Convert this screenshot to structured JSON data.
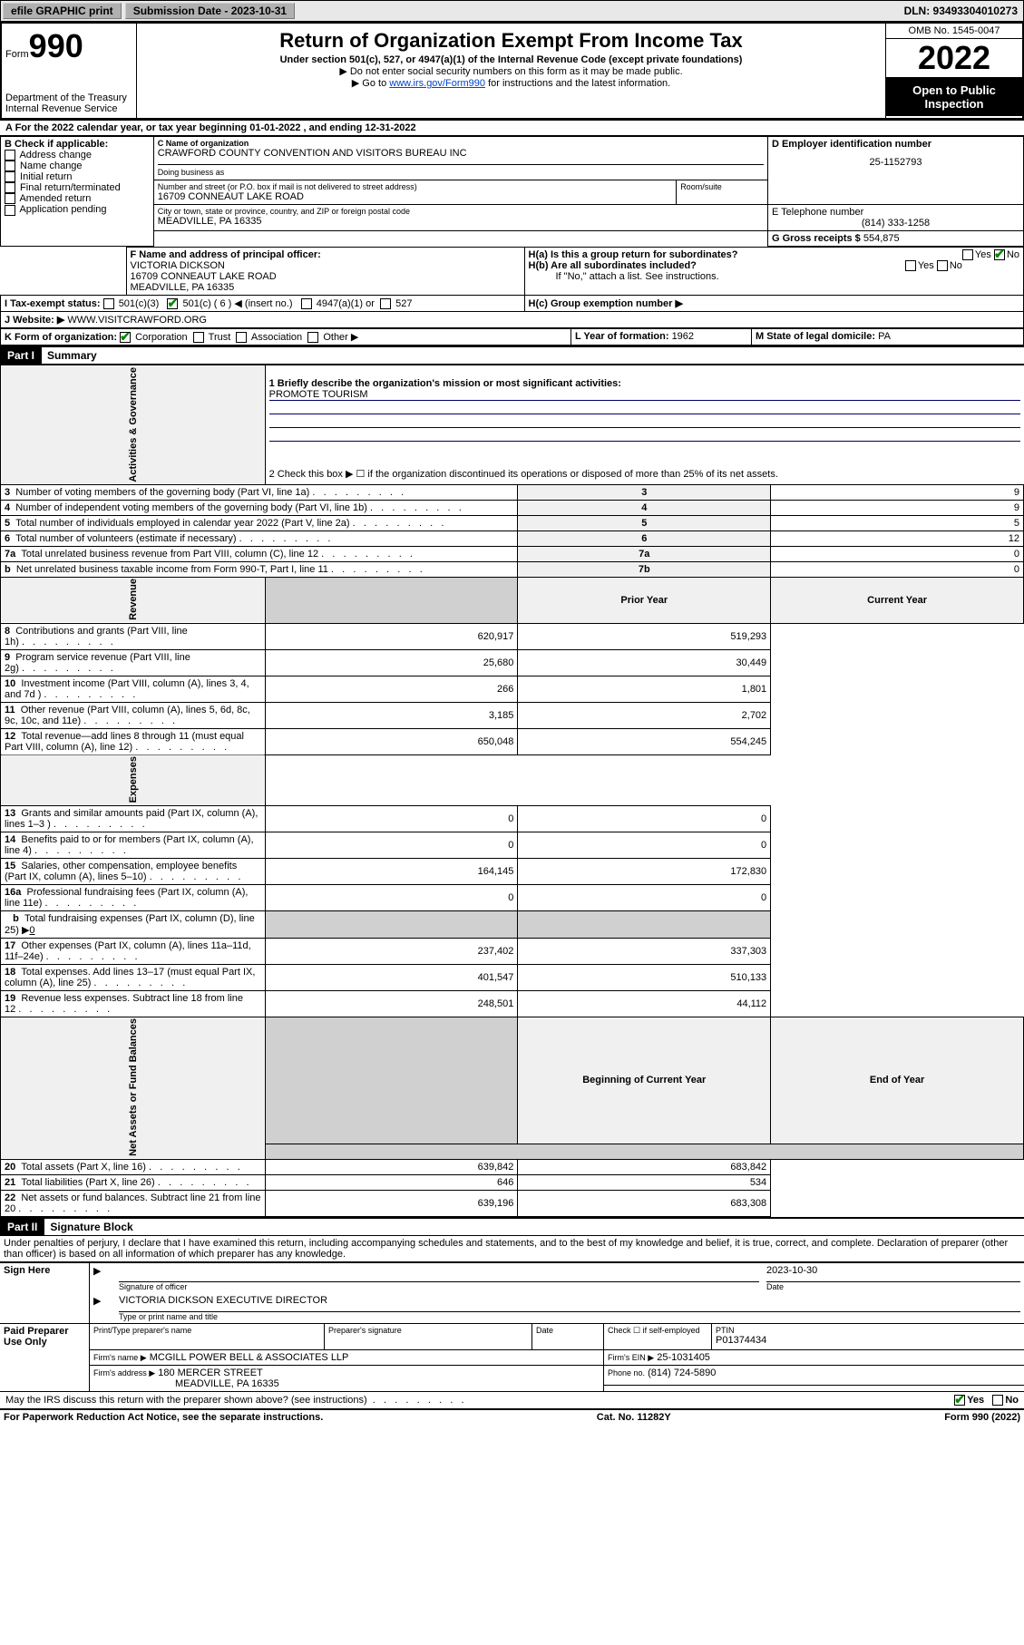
{
  "topbar": {
    "efile": "efile GRAPHIC print",
    "submission_label": "Submission Date - 2023-10-31",
    "dln": "DLN: 93493304010273"
  },
  "header": {
    "form_prefix": "Form",
    "form_no": "990",
    "dept": "Department of the Treasury",
    "irs": "Internal Revenue Service",
    "title": "Return of Organization Exempt From Income Tax",
    "sub1": "Under section 501(c), 527, or 4947(a)(1) of the Internal Revenue Code (except private foundations)",
    "sub2": "▶ Do not enter social security numbers on this form as it may be made public.",
    "sub3_pre": "▶ Go to ",
    "sub3_link": "www.irs.gov/Form990",
    "sub3_post": " for instructions and the latest information.",
    "omb": "OMB No. 1545-0047",
    "year": "2022",
    "inspect": "Open to Public Inspection"
  },
  "row_a": {
    "text_pre": "A For the 2022 calendar year, or tax year beginning ",
    "begin": "01-01-2022",
    "mid": "  , and ending ",
    "end": "12-31-2022"
  },
  "box_b": {
    "label": "B Check if applicable:",
    "items": [
      "Address change",
      "Name change",
      "Initial return",
      "Final return/terminated",
      "Amended return",
      "Application pending"
    ]
  },
  "box_c": {
    "label": "C Name of organization",
    "name": "CRAWFORD COUNTY CONVENTION AND VISITORS BUREAU INC",
    "dba_label": "Doing business as",
    "addr_label": "Number and street (or P.O. box if mail is not delivered to street address)",
    "room_label": "Room/suite",
    "addr": "16709 CONNEAUT LAKE ROAD",
    "city_label": "City or town, state or province, country, and ZIP or foreign postal code",
    "city": "MEADVILLE, PA  16335"
  },
  "box_d": {
    "label": "D Employer identification number",
    "value": "25-1152793"
  },
  "box_e": {
    "label": "E Telephone number",
    "value": "(814) 333-1258"
  },
  "box_g": {
    "label": "G Gross receipts $",
    "value": "554,875"
  },
  "box_f": {
    "label": "F Name and address of principal officer:",
    "name": "VICTORIA DICKSON",
    "addr1": "16709 CONNEAUT LAKE ROAD",
    "addr2": "MEADVILLE, PA  16335"
  },
  "box_h": {
    "ha": "H(a)  Is this a group return for subordinates?",
    "hb": "H(b)  Are all subordinates included?",
    "hb_note": "If \"No,\" attach a list. See instructions.",
    "hc": "H(c)  Group exemption number ▶",
    "yes": "Yes",
    "no": "No"
  },
  "box_i": {
    "label": "I   Tax-exempt status:",
    "o1": "501(c)(3)",
    "o2": "501(c) ( 6 ) ◀ (insert no.)",
    "o3": "4947(a)(1) or",
    "o4": "527"
  },
  "box_j": {
    "label": "J   Website: ▶",
    "value": "WWW.VISITCRAWFORD.ORG"
  },
  "box_k": {
    "label": "K Form of organization:",
    "o1": "Corporation",
    "o2": "Trust",
    "o3": "Association",
    "o4": "Other ▶"
  },
  "box_l": {
    "label": "L Year of formation: ",
    "value": "1962"
  },
  "box_m": {
    "label": "M State of legal domicile: ",
    "value": "PA"
  },
  "part1": {
    "hdr": "Part I",
    "title": "Summary",
    "line1_label": "1  Briefly describe the organization's mission or most significant activities:",
    "line1_value": "PROMOTE TOURISM",
    "line2": "2  Check this box ▶ ☐  if the organization discontinued its operations or disposed of more than 25% of its net assets.",
    "side_gov": "Activities & Governance",
    "side_rev": "Revenue",
    "side_exp": "Expenses",
    "side_net": "Net Assets or Fund Balances",
    "prior": "Prior Year",
    "current": "Current Year",
    "begin": "Beginning of Current Year",
    "endyr": "End of Year",
    "rows_gov": [
      {
        "n": "3",
        "desc": "Number of voting members of the governing body (Part VI, line 1a)",
        "num": "3",
        "val": "9"
      },
      {
        "n": "4",
        "desc": "Number of independent voting members of the governing body (Part VI, line 1b)",
        "num": "4",
        "val": "9"
      },
      {
        "n": "5",
        "desc": "Total number of individuals employed in calendar year 2022 (Part V, line 2a)",
        "num": "5",
        "val": "5"
      },
      {
        "n": "6",
        "desc": "Total number of volunteers (estimate if necessary)",
        "num": "6",
        "val": "12"
      },
      {
        "n": "7a",
        "desc": "Total unrelated business revenue from Part VIII, column (C), line 12",
        "num": "7a",
        "val": "0"
      },
      {
        "n": "b",
        "desc": "Net unrelated business taxable income from Form 990-T, Part I, line 11",
        "num": "7b",
        "val": "0"
      }
    ],
    "rows_rev": [
      {
        "n": "8",
        "desc": "Contributions and grants (Part VIII, line 1h)",
        "p": "620,917",
        "c": "519,293"
      },
      {
        "n": "9",
        "desc": "Program service revenue (Part VIII, line 2g)",
        "p": "25,680",
        "c": "30,449"
      },
      {
        "n": "10",
        "desc": "Investment income (Part VIII, column (A), lines 3, 4, and 7d )",
        "p": "266",
        "c": "1,801"
      },
      {
        "n": "11",
        "desc": "Other revenue (Part VIII, column (A), lines 5, 6d, 8c, 9c, 10c, and 11e)",
        "p": "3,185",
        "c": "2,702"
      },
      {
        "n": "12",
        "desc": "Total revenue—add lines 8 through 11 (must equal Part VIII, column (A), line 12)",
        "p": "650,048",
        "c": "554,245"
      }
    ],
    "rows_exp": [
      {
        "n": "13",
        "desc": "Grants and similar amounts paid (Part IX, column (A), lines 1–3 )",
        "p": "0",
        "c": "0"
      },
      {
        "n": "14",
        "desc": "Benefits paid to or for members (Part IX, column (A), line 4)",
        "p": "0",
        "c": "0"
      },
      {
        "n": "15",
        "desc": "Salaries, other compensation, employee benefits (Part IX, column (A), lines 5–10)",
        "p": "164,145",
        "c": "172,830"
      },
      {
        "n": "16a",
        "desc": "Professional fundraising fees (Part IX, column (A), line 11e)",
        "p": "0",
        "c": "0"
      }
    ],
    "row16b": {
      "n": "b",
      "desc": "Total fundraising expenses (Part IX, column (D), line 25) ▶",
      "val": "0"
    },
    "rows_exp2": [
      {
        "n": "17",
        "desc": "Other expenses (Part IX, column (A), lines 11a–11d, 11f–24e)",
        "p": "237,402",
        "c": "337,303"
      },
      {
        "n": "18",
        "desc": "Total expenses. Add lines 13–17 (must equal Part IX, column (A), line 25)",
        "p": "401,547",
        "c": "510,133"
      },
      {
        "n": "19",
        "desc": "Revenue less expenses. Subtract line 18 from line 12",
        "p": "248,501",
        "c": "44,112"
      }
    ],
    "rows_net": [
      {
        "n": "20",
        "desc": "Total assets (Part X, line 16)",
        "p": "639,842",
        "c": "683,842"
      },
      {
        "n": "21",
        "desc": "Total liabilities (Part X, line 26)",
        "p": "646",
        "c": "534"
      },
      {
        "n": "22",
        "desc": "Net assets or fund balances. Subtract line 21 from line 20",
        "p": "639,196",
        "c": "683,308"
      }
    ]
  },
  "part2": {
    "hdr": "Part II",
    "title": "Signature Block",
    "penalty": "Under penalties of perjury, I declare that I have examined this return, including accompanying schedules and statements, and to the best of my knowledge and belief, it is true, correct, and complete. Declaration of preparer (other than officer) is based on all information of which preparer has any knowledge."
  },
  "sign": {
    "side": "Sign Here",
    "sig_officer": "Signature of officer",
    "date_label": "Date",
    "date": "2023-10-30",
    "name": "VICTORIA DICKSON  EXECUTIVE DIRECTOR",
    "name_label": "Type or print name and title"
  },
  "paid": {
    "side": "Paid Preparer Use Only",
    "col1": "Print/Type preparer's name",
    "col2": "Preparer's signature",
    "col3": "Date",
    "col4_label": "Check ☐ if self-employed",
    "col5_label": "PTIN",
    "col5": "P01374434",
    "firm_name_label": "Firm's name     ▶",
    "firm_name": "MCGILL POWER BELL & ASSOCIATES LLP",
    "firm_ein_label": "Firm's EIN ▶",
    "firm_ein": "25-1031405",
    "firm_addr_label": "Firm's address ▶",
    "firm_addr1": "180 MERCER STREET",
    "firm_addr2": "MEADVILLE, PA  16335",
    "phone_label": "Phone no.",
    "phone": "(814) 724-5890"
  },
  "discuss": {
    "text": "May the IRS discuss this return with the preparer shown above? (see instructions)",
    "yes": "Yes",
    "no": "No"
  },
  "footer": {
    "left": "For Paperwork Reduction Act Notice, see the separate instructions.",
    "mid": "Cat. No. 11282Y",
    "right_pre": "Form ",
    "right_bold": "990",
    "right_post": " (2022)"
  }
}
